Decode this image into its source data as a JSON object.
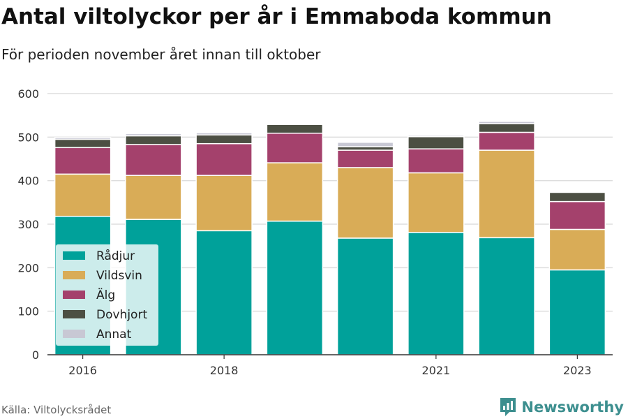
{
  "title": "Antal viltolyckor per år i Emmaboda kommun",
  "subtitle": "För perioden november året innan till oktober",
  "source": "Källa: Viltolycksrådet",
  "brand": "Newsworthy",
  "chart_data": {
    "type": "bar",
    "stacked": true,
    "categories": [
      "2016",
      "2017",
      "2018",
      "2019",
      "2020",
      "2021",
      "2022",
      "2023"
    ],
    "x_tick_labels": [
      "2016",
      "",
      "2018",
      "",
      "",
      "2021",
      "",
      "2023"
    ],
    "series": [
      {
        "name": "Rådjur",
        "color": "#00a19a",
        "values": [
          318,
          311,
          285,
          307,
          268,
          281,
          269,
          195
        ]
      },
      {
        "name": "Vildsvin",
        "color": "#d9ac57",
        "values": [
          97,
          101,
          127,
          134,
          162,
          137,
          201,
          93
        ]
      },
      {
        "name": "Älg",
        "color": "#a4416c",
        "values": [
          61,
          71,
          73,
          68,
          40,
          55,
          41,
          64
        ]
      },
      {
        "name": "Dovhjort",
        "color": "#4c4f43",
        "values": [
          19,
          20,
          20,
          20,
          8,
          28,
          20,
          21
        ]
      },
      {
        "name": "Annat",
        "color": "#c8c8d4",
        "values": [
          4,
          5,
          5,
          2,
          10,
          3,
          5,
          0
        ]
      }
    ],
    "ylim": [
      0,
      600
    ],
    "yticks": [
      0,
      100,
      200,
      300,
      400,
      500,
      600
    ],
    "grid": true,
    "legend_position": "bottom-left"
  }
}
